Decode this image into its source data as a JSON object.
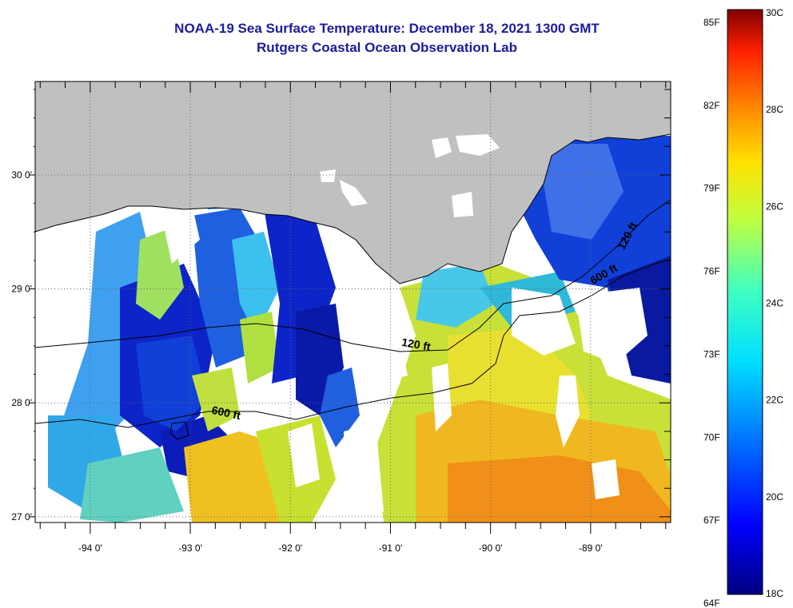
{
  "title": "NOAA-19 Sea Surface Temperature:  December 18, 2021 1300 GMT",
  "subtitle": "Rutgers Coastal Ocean Observation Lab",
  "axes": {
    "x_ticks": [
      {
        "value": -94,
        "label": "-94 0'"
      },
      {
        "value": -93,
        "label": "-93 0'"
      },
      {
        "value": -92,
        "label": "-92 0'"
      },
      {
        "value": -91,
        "label": "-91 0'"
      },
      {
        "value": -90,
        "label": "-90 0'"
      },
      {
        "value": -89,
        "label": "-89 0'"
      }
    ],
    "y_ticks": [
      {
        "value": 30,
        "label": "30 0'"
      },
      {
        "value": 29,
        "label": "29 0'"
      },
      {
        "value": 28,
        "label": "28 0'"
      },
      {
        "value": 27,
        "label": "27 0'"
      }
    ],
    "lon_range": [
      -94.55,
      -88.2
    ],
    "lat_range": [
      26.95,
      30.82
    ]
  },
  "contour_labels": [
    {
      "text": "120 ft",
      "lon": -90.75,
      "lat": 28.48,
      "rotate": 10
    },
    {
      "text": "120 ft",
      "lon": -88.6,
      "lat": 29.45,
      "rotate": -62
    },
    {
      "text": "600 ft",
      "lon": -92.65,
      "lat": 27.88,
      "rotate": 12
    },
    {
      "text": "600 ft",
      "lon": -88.85,
      "lat": 29.1,
      "rotate": -30
    }
  ],
  "colorbar": {
    "fahrenheit": [
      "85F",
      "82F",
      "79F",
      "76F",
      "73F",
      "70F",
      "67F",
      "64F"
    ],
    "celsius": [
      "30C",
      "28C",
      "26C",
      "24C",
      "22C",
      "20C",
      "18C"
    ]
  },
  "colors": {
    "land": "#c0c0c0",
    "title": "#1c1c9c",
    "no_data": "#ffffff"
  }
}
